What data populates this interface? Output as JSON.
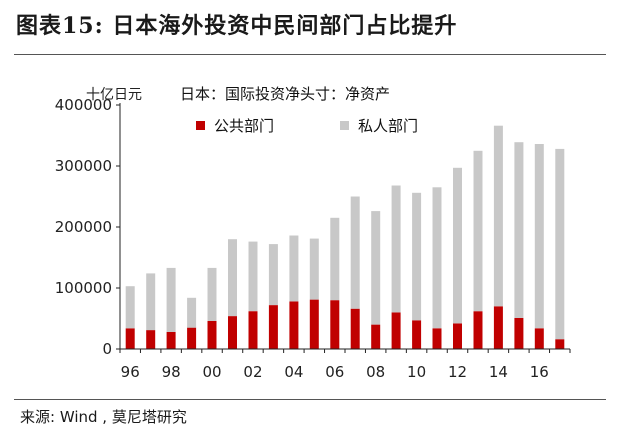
{
  "figure": {
    "title": "图表15:  日本海外投资中民间部门占比提升",
    "source": "来源: Wind , 莫尼塔研究"
  },
  "chart_data": {
    "type": "bar",
    "stacked": true,
    "title": "日本：国际投资净头寸：净资产",
    "ylabel": "十亿日元",
    "xlabel": "",
    "ylim": [
      0,
      400000
    ],
    "yticks": [
      0,
      100000,
      200000,
      300000,
      400000
    ],
    "ytick_labels": [
      "0",
      "100000",
      "200000",
      "300000",
      "400000"
    ],
    "x_tick_labels": [
      "96",
      "98",
      "00",
      "02",
      "04",
      "06",
      "08",
      "10",
      "12",
      "14",
      "16"
    ],
    "x_tick_every": 2,
    "grid": false,
    "legend_position": "top",
    "categories": [
      "1996",
      "1997",
      "1998",
      "1999",
      "2000",
      "2001",
      "2002",
      "2003",
      "2004",
      "2005",
      "2006",
      "2007",
      "2008",
      "2009",
      "2010",
      "2011",
      "2012",
      "2013",
      "2014",
      "2015",
      "2016",
      "2017"
    ],
    "series": [
      {
        "name": "公共部门",
        "color": "#c00000",
        "values": [
          34000,
          31000,
          28000,
          35000,
          46000,
          54000,
          62000,
          72000,
          78000,
          81000,
          80000,
          66000,
          40000,
          60000,
          47000,
          34000,
          42000,
          62000,
          70000,
          51000,
          34000,
          16000
        ]
      },
      {
        "name": "私人部门",
        "color": "#c8c8c8",
        "values": [
          69000,
          93000,
          105000,
          49000,
          87000,
          126000,
          114000,
          100000,
          108000,
          100000,
          135000,
          184000,
          186000,
          208000,
          209000,
          231000,
          255000,
          263000,
          296000,
          288000,
          302000,
          312000
        ]
      }
    ]
  }
}
